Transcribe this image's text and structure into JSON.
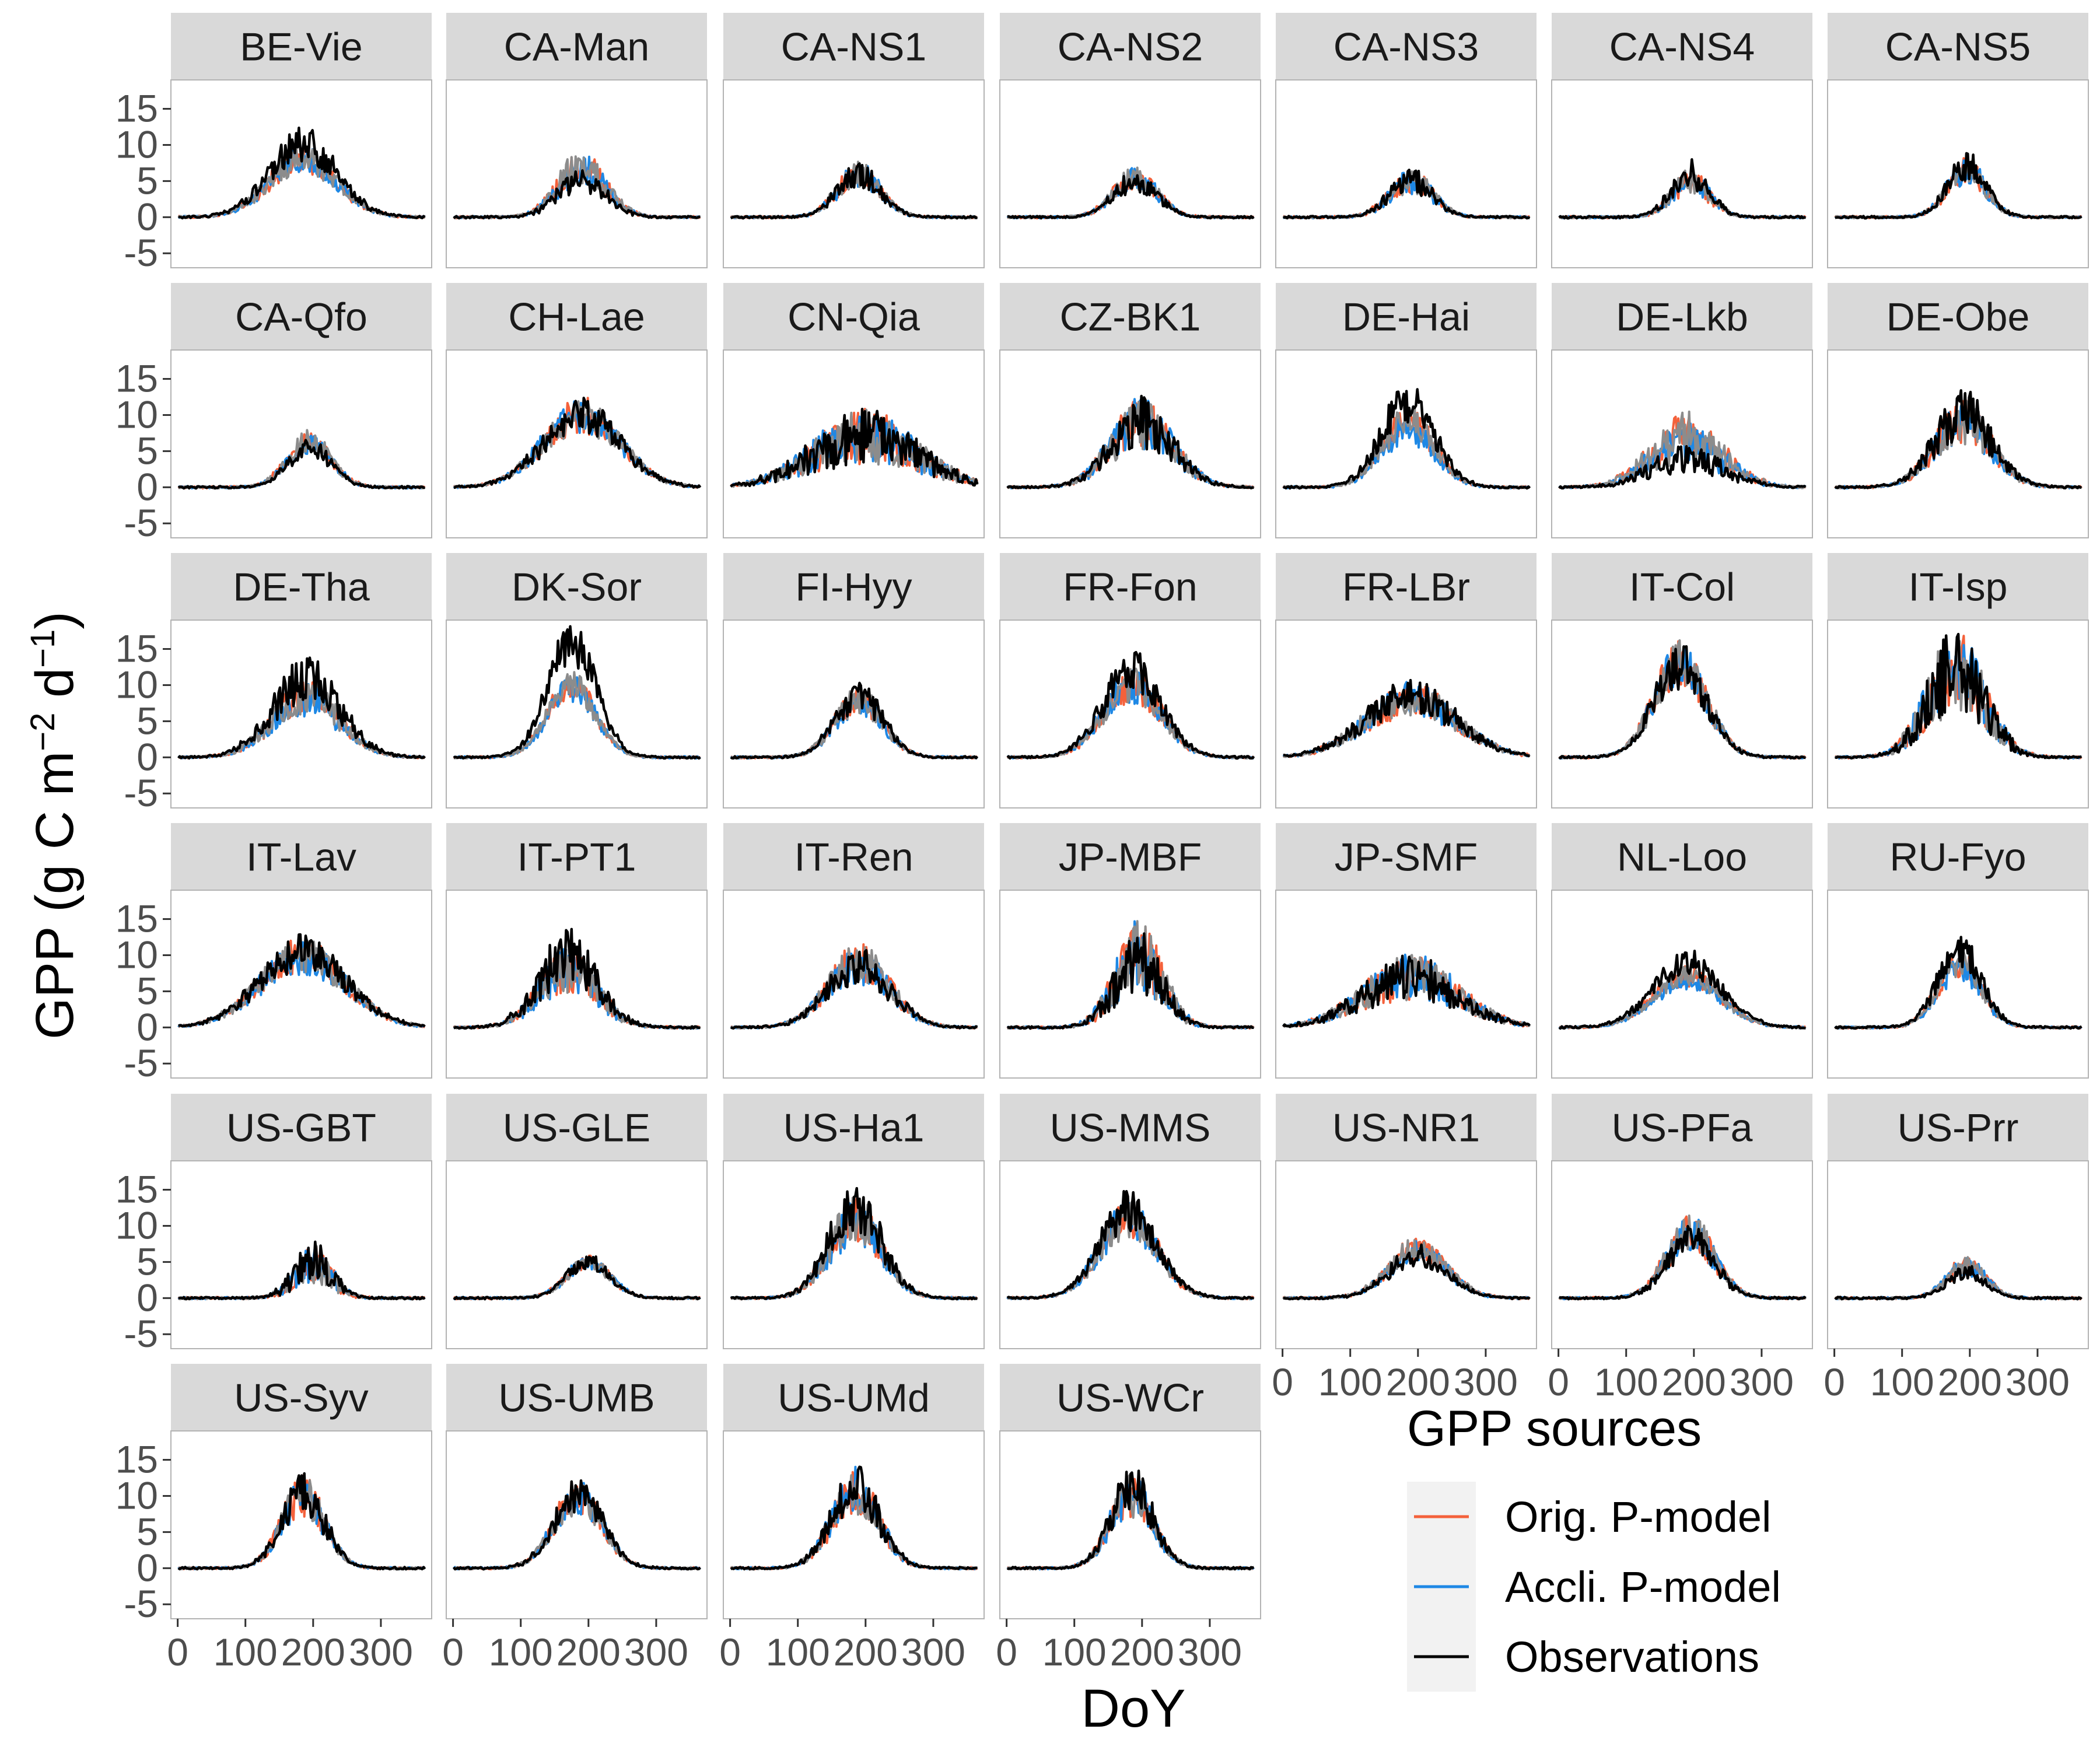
{
  "chart_data": {
    "type": "line",
    "facet": "site",
    "ylabel": "GPP (g C m⁻² d⁻¹)",
    "ylabel_parts": [
      "GPP (g C m",
      "−2",
      " d",
      "−1",
      ")"
    ],
    "xlabel": "DoY",
    "x_ticks": [
      "0",
      "100",
      "200",
      "300"
    ],
    "y_ticks": [
      "-5",
      "0",
      "5",
      "10",
      "15"
    ],
    "xlim": [
      -10,
      375
    ],
    "ylim": [
      -7,
      19
    ],
    "grid": false,
    "legend": {
      "title": "GPP sources",
      "placement": "bottom-right",
      "entries": [
        {
          "label": "Orig. P-model",
          "color": "#F4613B"
        },
        {
          "label": "Accli. P-model",
          "color": "#1E88E5"
        },
        {
          "label": "Observations",
          "color": "#000000"
        }
      ]
    },
    "series_colors": {
      "orig": "#F4613B",
      "accli": "#1E88E5",
      "grey": "#8C8C8C",
      "obs": "#000000"
    },
    "panels": [
      {
        "site": "BE-Vie",
        "peak": {
          "orig": 8,
          "accli": 8,
          "obs": 10
        },
        "center": 185,
        "width": 70,
        "noise": 0.25
      },
      {
        "site": "CA-Man",
        "peak": {
          "orig": 7,
          "accli": 6.5,
          "obs": 5
        },
        "center": 190,
        "width": 50,
        "noise": 0.35
      },
      {
        "site": "CA-NS1",
        "peak": {
          "orig": 6,
          "accli": 6,
          "obs": 6
        },
        "center": 190,
        "width": 45,
        "noise": 0.3
      },
      {
        "site": "CA-NS2",
        "peak": {
          "orig": 5.5,
          "accli": 5.5,
          "obs": 5
        },
        "center": 190,
        "width": 45,
        "noise": 0.3
      },
      {
        "site": "CA-NS3",
        "peak": {
          "orig": 5,
          "accli": 5,
          "obs": 5
        },
        "center": 190,
        "width": 45,
        "noise": 0.35
      },
      {
        "site": "CA-NS4",
        "peak": {
          "orig": 5,
          "accli": 5,
          "obs": 6
        },
        "center": 195,
        "width": 40,
        "noise": 0.35
      },
      {
        "site": "CA-NS5",
        "peak": {
          "orig": 6.5,
          "accli": 6.5,
          "obs": 7
        },
        "center": 195,
        "width": 40,
        "noise": 0.3
      },
      {
        "site": "CA-Qfo",
        "peak": {
          "orig": 6.5,
          "accli": 6,
          "obs": 5.5
        },
        "center": 195,
        "width": 45,
        "noise": 0.25
      },
      {
        "site": "CH-Lae",
        "peak": {
          "orig": 10,
          "accli": 10,
          "obs": 10
        },
        "center": 190,
        "width": 80,
        "noise": 0.25
      },
      {
        "site": "CN-Qia",
        "peak": {
          "orig": 7,
          "accli": 7,
          "obs": 7
        },
        "center": 200,
        "width": 110,
        "noise": 0.55
      },
      {
        "site": "CZ-BK1",
        "peak": {
          "orig": 9,
          "accli": 9,
          "obs": 9
        },
        "center": 200,
        "width": 65,
        "noise": 0.4
      },
      {
        "site": "DE-Hai",
        "peak": {
          "orig": 9,
          "accli": 8,
          "obs": 12
        },
        "center": 185,
        "width": 55,
        "noise": 0.25
      },
      {
        "site": "DE-Lkb",
        "peak": {
          "orig": 7,
          "accli": 6,
          "obs": 4
        },
        "center": 190,
        "width": 75,
        "noise": 0.5
      },
      {
        "site": "DE-Obe",
        "peak": {
          "orig": 9,
          "accli": 9,
          "obs": 10
        },
        "center": 190,
        "width": 60,
        "noise": 0.35
      },
      {
        "site": "DE-Tha",
        "peak": {
          "orig": 8.5,
          "accli": 8,
          "obs": 11
        },
        "center": 190,
        "width": 70,
        "noise": 0.3
      },
      {
        "site": "DK-Sor",
        "peak": {
          "orig": 10,
          "accli": 9.5,
          "obs": 16
        },
        "center": 175,
        "width": 50,
        "noise": 0.2
      },
      {
        "site": "FI-Hyy",
        "peak": {
          "orig": 8,
          "accli": 7.5,
          "obs": 8.5
        },
        "center": 190,
        "width": 50,
        "noise": 0.25
      },
      {
        "site": "FR-Fon",
        "peak": {
          "orig": 10,
          "accli": 10,
          "obs": 12.5
        },
        "center": 185,
        "width": 60,
        "noise": 0.25
      },
      {
        "site": "FR-LBr",
        "peak": {
          "orig": 8,
          "accli": 8,
          "obs": 8.5
        },
        "center": 190,
        "width": 95,
        "noise": 0.3
      },
      {
        "site": "IT-Col",
        "peak": {
          "orig": 13,
          "accli": 13,
          "obs": 12.5
        },
        "center": 180,
        "width": 55,
        "noise": 0.25
      },
      {
        "site": "IT-Isp",
        "peak": {
          "orig": 12,
          "accli": 12,
          "obs": 12
        },
        "center": 180,
        "width": 60,
        "noise": 0.5
      },
      {
        "site": "IT-Lav",
        "peak": {
          "orig": 10,
          "accli": 9.5,
          "obs": 10.5
        },
        "center": 185,
        "width": 90,
        "noise": 0.25
      },
      {
        "site": "IT-PT1",
        "peak": {
          "orig": 8,
          "accli": 8,
          "obs": 10
        },
        "center": 170,
        "width": 60,
        "noise": 0.4
      },
      {
        "site": "IT-Ren",
        "peak": {
          "orig": 9,
          "accli": 8.5,
          "obs": 8.5
        },
        "center": 190,
        "width": 65,
        "noise": 0.3
      },
      {
        "site": "JP-MBF",
        "peak": {
          "orig": 10,
          "accli": 10,
          "obs": 9
        },
        "center": 195,
        "width": 50,
        "noise": 0.5
      },
      {
        "site": "JP-SMF",
        "peak": {
          "orig": 7,
          "accli": 7,
          "obs": 7
        },
        "center": 190,
        "width": 100,
        "noise": 0.45
      },
      {
        "site": "NL-Loo",
        "peak": {
          "orig": 7,
          "accli": 6.5,
          "obs": 9
        },
        "center": 190,
        "width": 70,
        "noise": 0.2
      },
      {
        "site": "RU-Fyo",
        "peak": {
          "orig": 9,
          "accli": 8.5,
          "obs": 10.5
        },
        "center": 185,
        "width": 45,
        "noise": 0.25
      },
      {
        "site": "US-GBT",
        "peak": {
          "orig": 4.5,
          "accli": 4.5,
          "obs": 5
        },
        "center": 200,
        "width": 40,
        "noise": 0.6
      },
      {
        "site": "US-GLE",
        "peak": {
          "orig": 5,
          "accli": 5,
          "obs": 5
        },
        "center": 200,
        "width": 45,
        "noise": 0.2
      },
      {
        "site": "US-Ha1",
        "peak": {
          "orig": 11,
          "accli": 10.5,
          "obs": 12.5
        },
        "center": 185,
        "width": 55,
        "noise": 0.3
      },
      {
        "site": "US-MMS",
        "peak": {
          "orig": 11,
          "accli": 11,
          "obs": 12
        },
        "center": 180,
        "width": 60,
        "noise": 0.25
      },
      {
        "site": "US-NR1",
        "peak": {
          "orig": 7,
          "accli": 6.5,
          "obs": 6
        },
        "center": 200,
        "width": 60,
        "noise": 0.25
      },
      {
        "site": "US-PFa",
        "peak": {
          "orig": 9,
          "accli": 9,
          "obs": 8
        },
        "center": 195,
        "width": 50,
        "noise": 0.3
      },
      {
        "site": "US-Prr",
        "peak": {
          "orig": 4.5,
          "accli": 4.5,
          "obs": 3.5
        },
        "center": 195,
        "width": 40,
        "noise": 0.3
      },
      {
        "site": "US-Syv",
        "peak": {
          "orig": 10,
          "accli": 10,
          "obs": 10.5
        },
        "center": 185,
        "width": 45,
        "noise": 0.3
      },
      {
        "site": "US-UMB",
        "peak": {
          "orig": 10,
          "accli": 10,
          "obs": 10.5
        },
        "center": 185,
        "width": 50,
        "noise": 0.25
      },
      {
        "site": "US-UMd",
        "peak": {
          "orig": 10.5,
          "accli": 11,
          "obs": 11
        },
        "center": 185,
        "width": 50,
        "noise": 0.3
      },
      {
        "site": "US-WCr",
        "peak": {
          "orig": 10,
          "accli": 10,
          "obs": 11
        },
        "center": 185,
        "width": 45,
        "noise": 0.3
      }
    ]
  }
}
